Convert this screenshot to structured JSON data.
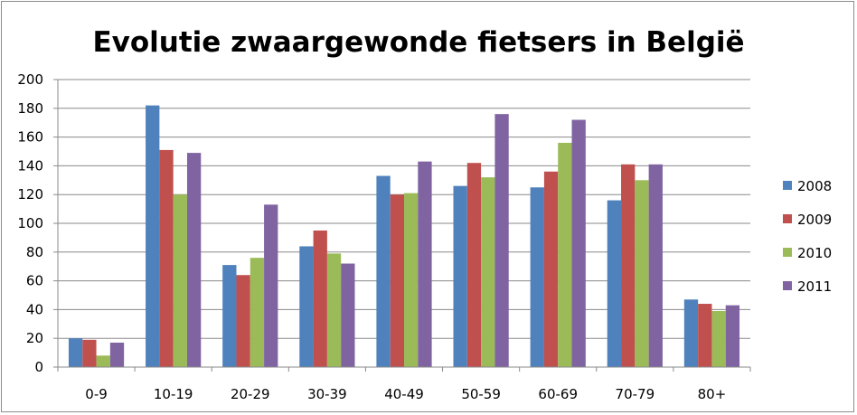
{
  "chart_data": {
    "type": "bar",
    "title": "Evolutie zwaargewonde fietsers in België",
    "xlabel": "",
    "ylabel": "",
    "ylim": [
      0,
      200
    ],
    "yticks": [
      0,
      20,
      40,
      60,
      80,
      100,
      120,
      140,
      160,
      180,
      200
    ],
    "grid": true,
    "legend_position": "right",
    "categories": [
      "0-9",
      "10-19",
      "20-29",
      "30-39",
      "40-49",
      "50-59",
      "60-69",
      "70-79",
      "80+"
    ],
    "series": [
      {
        "name": "2008",
        "color": "#4F81BD",
        "values": [
          20,
          182,
          71,
          84,
          133,
          126,
          125,
          116,
          47
        ]
      },
      {
        "name": "2009",
        "color": "#C0504D",
        "values": [
          19,
          151,
          64,
          95,
          120,
          142,
          136,
          141,
          44
        ]
      },
      {
        "name": "2010",
        "color": "#9BBB59",
        "values": [
          8,
          120,
          76,
          79,
          121,
          132,
          156,
          130,
          39
        ]
      },
      {
        "name": "2011",
        "color": "#8064A2",
        "values": [
          17,
          149,
          113,
          72,
          143,
          176,
          172,
          141,
          43
        ]
      }
    ]
  }
}
